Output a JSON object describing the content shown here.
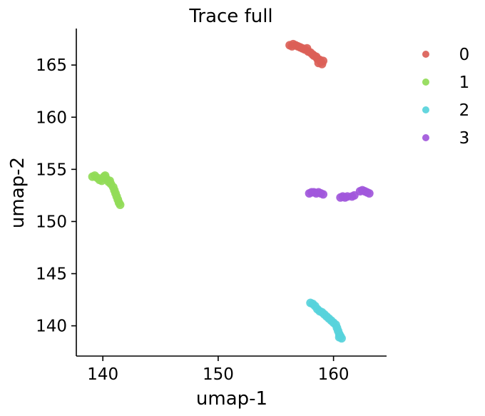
{
  "chart_data": {
    "type": "scatter",
    "title": "Trace full",
    "xlabel": "umap-1",
    "ylabel": "umap-2",
    "xlim": [
      137.7,
      164.6
    ],
    "ylim": [
      137.1,
      168.5
    ],
    "xticks": [
      140,
      150,
      160
    ],
    "yticks": [
      140,
      145,
      150,
      155,
      160,
      165
    ],
    "grid": false,
    "legend_position": "right",
    "series": [
      {
        "name": "0",
        "color": "#db5f57",
        "points": [
          [
            156.2,
            166.9
          ],
          [
            156.4,
            166.8
          ],
          [
            156.5,
            167.0
          ],
          [
            156.7,
            166.9
          ],
          [
            156.9,
            166.8
          ],
          [
            157.1,
            166.7
          ],
          [
            157.3,
            166.6
          ],
          [
            157.5,
            166.5
          ],
          [
            157.7,
            166.6
          ],
          [
            157.8,
            166.3
          ],
          [
            158.0,
            166.2
          ],
          [
            158.2,
            166.0
          ],
          [
            158.3,
            165.9
          ],
          [
            158.5,
            165.8
          ],
          [
            158.6,
            165.6
          ],
          [
            158.8,
            165.5
          ],
          [
            158.9,
            165.3
          ],
          [
            159.0,
            165.1
          ],
          [
            159.1,
            165.4
          ],
          [
            158.7,
            165.2
          ]
        ]
      },
      {
        "name": "1",
        "color": "#91db57",
        "points": [
          [
            139.1,
            154.3
          ],
          [
            139.3,
            154.4
          ],
          [
            139.5,
            154.2
          ],
          [
            139.7,
            154.0
          ],
          [
            139.9,
            153.9
          ],
          [
            140.1,
            154.3
          ],
          [
            140.3,
            154.1
          ],
          [
            140.5,
            153.8
          ],
          [
            140.7,
            153.6
          ],
          [
            140.9,
            153.3
          ],
          [
            141.0,
            153.0
          ],
          [
            141.1,
            152.7
          ],
          [
            141.2,
            152.4
          ],
          [
            141.3,
            152.1
          ],
          [
            141.4,
            151.8
          ],
          [
            141.5,
            151.6
          ],
          [
            140.2,
            154.4
          ],
          [
            140.6,
            153.9
          ]
        ]
      },
      {
        "name": "2",
        "color": "#57d3db",
        "points": [
          [
            158.0,
            142.2
          ],
          [
            158.2,
            142.1
          ],
          [
            158.4,
            141.9
          ],
          [
            158.6,
            141.6
          ],
          [
            158.8,
            141.4
          ],
          [
            159.0,
            141.3
          ],
          [
            159.2,
            141.1
          ],
          [
            159.4,
            140.9
          ],
          [
            159.6,
            140.7
          ],
          [
            159.8,
            140.5
          ],
          [
            160.0,
            140.3
          ],
          [
            160.2,
            140.1
          ],
          [
            160.3,
            139.8
          ],
          [
            160.4,
            139.5
          ],
          [
            160.5,
            139.2
          ],
          [
            160.6,
            139.0
          ],
          [
            160.7,
            138.8
          ],
          [
            160.5,
            138.9
          ]
        ]
      },
      {
        "name": "3",
        "color": "#a157db",
        "points": [
          [
            157.9,
            152.7
          ],
          [
            158.1,
            152.8
          ],
          [
            158.3,
            152.8
          ],
          [
            158.5,
            152.7
          ],
          [
            158.7,
            152.8
          ],
          [
            158.9,
            152.7
          ],
          [
            159.1,
            152.6
          ],
          [
            160.6,
            152.3
          ],
          [
            160.8,
            152.4
          ],
          [
            161.0,
            152.3
          ],
          [
            161.2,
            152.4
          ],
          [
            161.6,
            152.4
          ],
          [
            161.8,
            152.5
          ],
          [
            162.3,
            152.9
          ],
          [
            162.5,
            153.0
          ],
          [
            162.7,
            152.9
          ],
          [
            162.9,
            152.8
          ],
          [
            163.1,
            152.7
          ]
        ]
      }
    ]
  }
}
